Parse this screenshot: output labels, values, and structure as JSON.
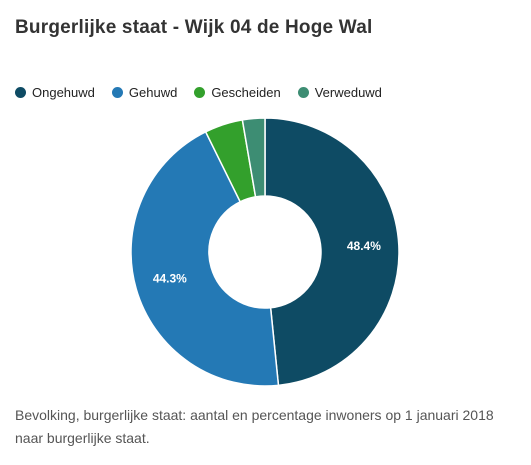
{
  "title": "Burgerlijke staat - Wijk 04 de Hoge Wal",
  "colors": {
    "Ongehuwd": "#0e4b64",
    "Gehuwd": "#2479b5",
    "Gescheiden": "#33a02c",
    "Verweduwd": "#3d8d73"
  },
  "chart_data": {
    "type": "pie",
    "title": "Burgerlijke staat - Wijk 04 de Hoge Wal",
    "legend_position": "top-left",
    "donut": true,
    "categories": [
      "Ongehuwd",
      "Gehuwd",
      "Gescheiden",
      "Verweduwd"
    ],
    "values": [
      48.4,
      44.3,
      4.6,
      2.7
    ],
    "data_labels": [
      "48.4%",
      "44.3%",
      "",
      ""
    ]
  },
  "caption": "Bevolking, burgerlijke staat: aantal en percentage inwoners op 1 januari 2018 naar burgerlijke staat."
}
